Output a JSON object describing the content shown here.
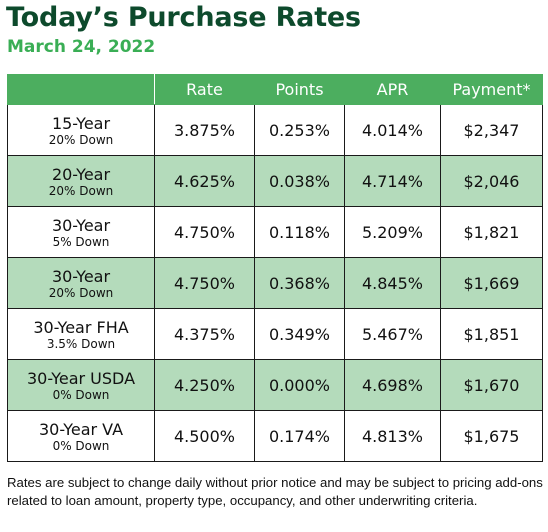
{
  "title": "Today’s Purchase Rates",
  "date": "March 24, 2022",
  "table": {
    "headers": [
      "",
      "Rate",
      "Points",
      "APR",
      "Payment*"
    ],
    "rows": [
      {
        "term": "15-Year",
        "down": "20% Down",
        "rate": "3.875%",
        "points": "0.253%",
        "apr": "4.014%",
        "payment": "$2,347",
        "shaded": false
      },
      {
        "term": "20-Year",
        "down": "20% Down",
        "rate": "4.625%",
        "points": "0.038%",
        "apr": "4.714%",
        "payment": "$2,046",
        "shaded": true
      },
      {
        "term": "30-Year",
        "down": "5% Down",
        "rate": "4.750%",
        "points": "0.118%",
        "apr": "5.209%",
        "payment": "$1,821",
        "shaded": false
      },
      {
        "term": "30-Year",
        "down": "20% Down",
        "rate": "4.750%",
        "points": "0.368%",
        "apr": "4.845%",
        "payment": "$1,669",
        "shaded": true
      },
      {
        "term": "30-Year FHA",
        "down": "3.5% Down",
        "rate": "4.375%",
        "points": "0.349%",
        "apr": "5.467%",
        "payment": "$1,851",
        "shaded": false
      },
      {
        "term": "30-Year USDA",
        "down": "0% Down",
        "rate": "4.250%",
        "points": "0.000%",
        "apr": "4.698%",
        "payment": "$1,670",
        "shaded": true
      },
      {
        "term": "30-Year VA",
        "down": "0% Down",
        "rate": "4.500%",
        "points": "0.174%",
        "apr": "4.813%",
        "payment": "$1,675",
        "shaded": false
      }
    ]
  },
  "disclaimer": "Rates are subject to change daily without prior notice and may be subject to pricing add-ons related to loan amount, property type, occupancy, and other underwriting criteria.",
  "colors": {
    "title": "#0d4a2c",
    "date": "#3aae55",
    "header_bg": "#4cae5f",
    "row_shade": "#b4dbbb"
  }
}
